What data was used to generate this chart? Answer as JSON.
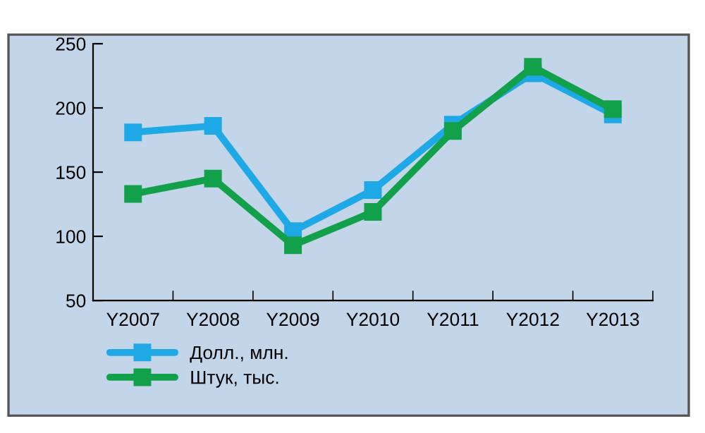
{
  "chart_data": {
    "type": "line",
    "categories": [
      "Y2007",
      "Y2008",
      "Y2009",
      "Y2010",
      "Y2011",
      "Y2012",
      "Y2013"
    ],
    "series": [
      {
        "name": "Долл., млн.",
        "color": "#1ea9e6",
        "values": [
          181,
          186,
          104,
          136,
          187,
          227,
          195
        ]
      },
      {
        "name": "Штук, тыс.",
        "color": "#13a04a",
        "values": [
          133,
          145,
          93,
          119,
          182,
          232,
          199
        ]
      }
    ],
    "ylim": [
      50,
      250
    ],
    "yticks": [
      50,
      100,
      150,
      200,
      250
    ],
    "grid": false,
    "legend": "bottom left",
    "marker": "square",
    "line_style": "solid"
  }
}
